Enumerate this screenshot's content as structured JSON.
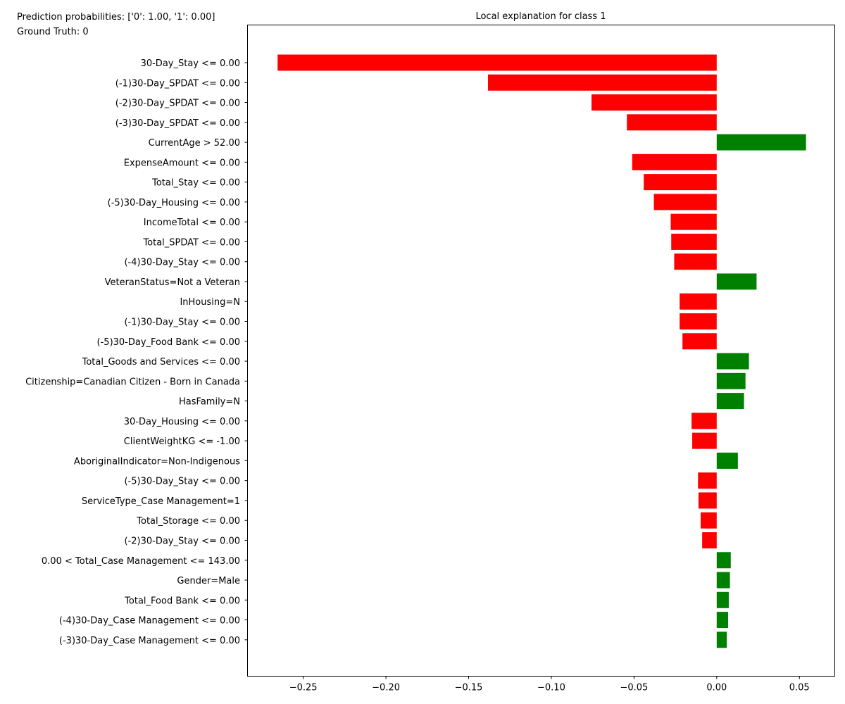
{
  "info": {
    "prediction": "Prediction probabilities: ['0': 1.00, '1': 0.00]",
    "ground_truth": "Ground Truth: 0"
  },
  "colors": {
    "negative": "#ff0000",
    "positive": "#008000",
    "axis": "#000000"
  },
  "chart_data": {
    "type": "bar",
    "orientation": "horizontal",
    "title": "Local explanation for class 1",
    "xlabel": "",
    "ylabel": "",
    "xlim": [
      -0.2837,
      0.0714
    ],
    "xticks": [
      -0.25,
      -0.2,
      -0.15,
      -0.1,
      -0.05,
      0.0,
      0.05
    ],
    "xtick_labels": [
      "−0.25",
      "−0.20",
      "−0.15",
      "−0.10",
      "−0.05",
      "0.00",
      "0.05"
    ],
    "categories": [
      "30-Day_Stay <= 0.00",
      "(-1)30-Day_SPDAT <= 0.00",
      "(-2)30-Day_SPDAT <= 0.00",
      "(-3)30-Day_SPDAT <= 0.00",
      "CurrentAge > 52.00",
      "ExpenseAmount <= 0.00",
      "Total_Stay <= 0.00",
      "(-5)30-Day_Housing <= 0.00",
      "IncomeTotal <= 0.00",
      "Total_SPDAT <= 0.00",
      "(-4)30-Day_Stay <= 0.00",
      "VeteranStatus=Not a Veteran",
      "InHousing=N",
      "(-1)30-Day_Stay <= 0.00",
      "(-5)30-Day_Food Bank <= 0.00",
      "Total_Goods and Services <= 0.00",
      "Citizenship=Canadian Citizen - Born in Canada",
      "HasFamily=N",
      "30-Day_Housing <= 0.00",
      "ClientWeightKG <= -1.00",
      "AboriginalIndicator=Non-Indigenous",
      "(-5)30-Day_Stay <= 0.00",
      "ServiceType_Case Management=1",
      "Total_Storage <= 0.00",
      "(-2)30-Day_Stay <= 0.00",
      "0.00 < Total_Case Management <= 143.00",
      "Gender=Male",
      "Total_Food Bank <= 0.00",
      "(-4)30-Day_Case Management <= 0.00",
      "(-3)30-Day_Case Management <= 0.00"
    ],
    "values": [
      -0.2655,
      -0.1383,
      -0.0757,
      -0.0543,
      0.054,
      -0.0511,
      -0.0441,
      -0.038,
      -0.0278,
      -0.0275,
      -0.0257,
      0.0241,
      -0.0224,
      -0.0224,
      -0.0207,
      0.0195,
      0.0174,
      0.0165,
      -0.0152,
      -0.0148,
      0.0128,
      -0.0113,
      -0.011,
      -0.0097,
      -0.0088,
      0.0085,
      0.008,
      0.0073,
      0.0069,
      0.0061
    ]
  }
}
